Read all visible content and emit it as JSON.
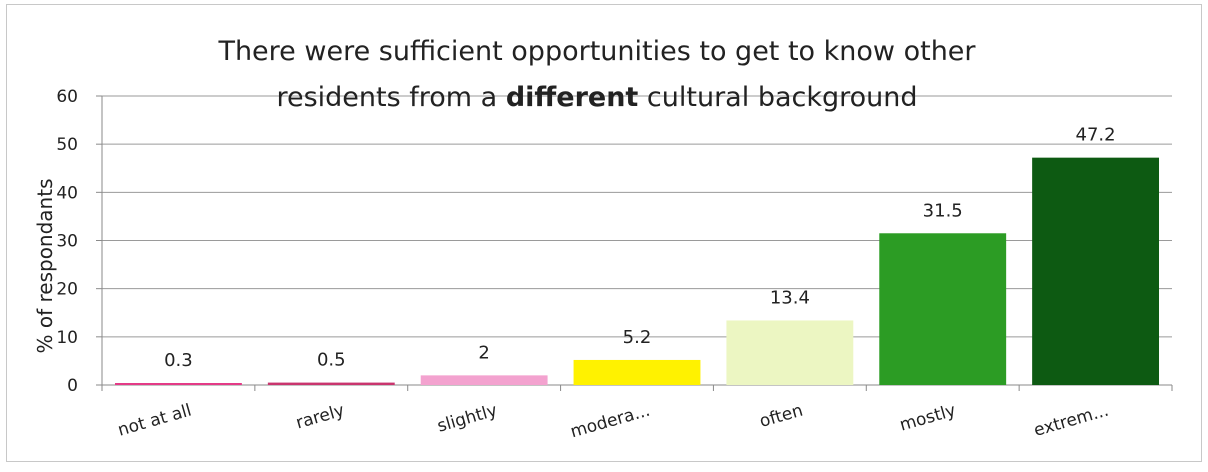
{
  "chart_data": {
    "type": "bar",
    "title_line1": "There were sufficient opportunities to get to know other",
    "title_line2_prefix": "residents from a ",
    "title_line2_bold": "different",
    "title_line2_suffix": " cultural background",
    "xlabel": "",
    "ylabel": "% of respondants",
    "ylim": [
      0,
      60
    ],
    "yticks": [
      "0",
      "10",
      "20",
      "30",
      "40",
      "50",
      "60"
    ],
    "grid": true,
    "categories": [
      "not at all",
      "rarely",
      "slightly",
      "modera...",
      "often",
      "mostly",
      "extrem..."
    ],
    "values": [
      0.3,
      0.5,
      2,
      5.2,
      13.4,
      31.5,
      47.2
    ],
    "value_labels": [
      "0.3",
      "0.5",
      "2",
      "5.2",
      "13.4",
      "31.5",
      "47.2"
    ],
    "colors": [
      "#e43a87",
      "#c9356e",
      "#f3a2cf",
      "#fff200",
      "#ecf6c2",
      "#2c9c24",
      "#0d5a12"
    ]
  }
}
